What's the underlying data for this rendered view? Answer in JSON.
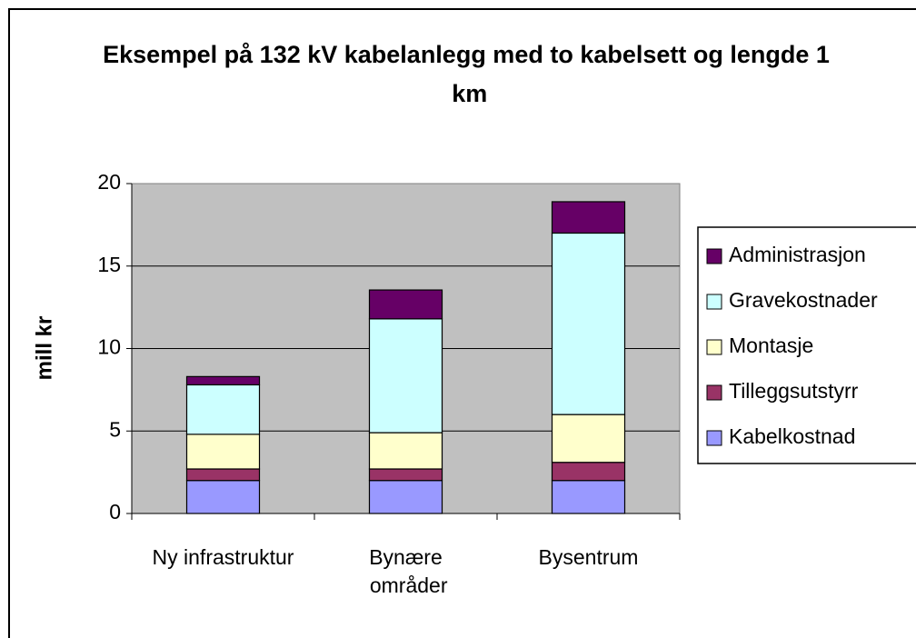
{
  "chart_data": {
    "type": "stacked_bar",
    "title": "Eksempel på 132 kV kabelanlegg med to kabelsett og lengde 1 km",
    "ylabel": "mill kr",
    "categories": [
      "Ny infrastruktur",
      "Bynære områder",
      "Bysentrum"
    ],
    "series": [
      {
        "name": "Kabelkostnad",
        "color": "#9999ff",
        "values": [
          2,
          2,
          2
        ]
      },
      {
        "name": "Tilleggsutstyrr",
        "color": "#993366",
        "values": [
          0.7,
          0.7,
          1.1
        ]
      },
      {
        "name": "Montasje",
        "color": "#ffffcc",
        "values": [
          2.1,
          2.2,
          2.9
        ]
      },
      {
        "name": "Gravekostnader",
        "color": "#ccffff",
        "values": [
          3,
          6.9,
          11
        ]
      },
      {
        "name": "Administrasjon",
        "color": "#660066",
        "values": [
          0.5,
          1.75,
          1.9
        ]
      }
    ],
    "ylim": [
      0,
      20
    ],
    "yticks": [
      0,
      5,
      10,
      15,
      20
    ],
    "grid": true,
    "legend": "right"
  }
}
